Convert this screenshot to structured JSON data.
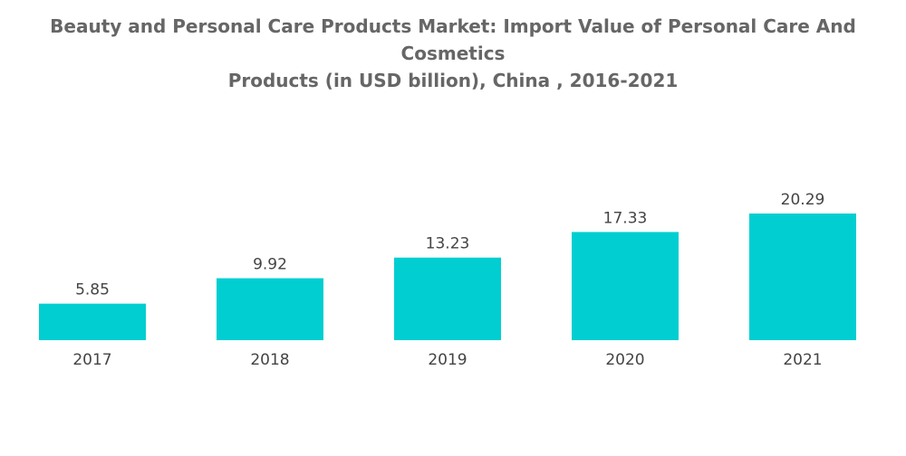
{
  "chart_data": {
    "type": "bar",
    "title_lines": [
      "Beauty and Personal Care Products Market: Import Value of Personal Care And Cosmetics",
      "Products (in USD billion), China , 2016-2021"
    ],
    "categories": [
      "2017",
      "2018",
      "2019",
      "2020",
      "2021"
    ],
    "values": [
      5.85,
      9.92,
      13.23,
      17.33,
      20.29
    ],
    "value_labels": [
      "5.85",
      "9.92",
      "13.23",
      "17.33",
      "20.29"
    ],
    "xlabel": "",
    "ylabel": "",
    "ylim": [
      0,
      20.29
    ],
    "grid": false,
    "legend": "none",
    "colors": {
      "bar": "#00CED1",
      "text": "#444444",
      "title": "#666666"
    }
  }
}
